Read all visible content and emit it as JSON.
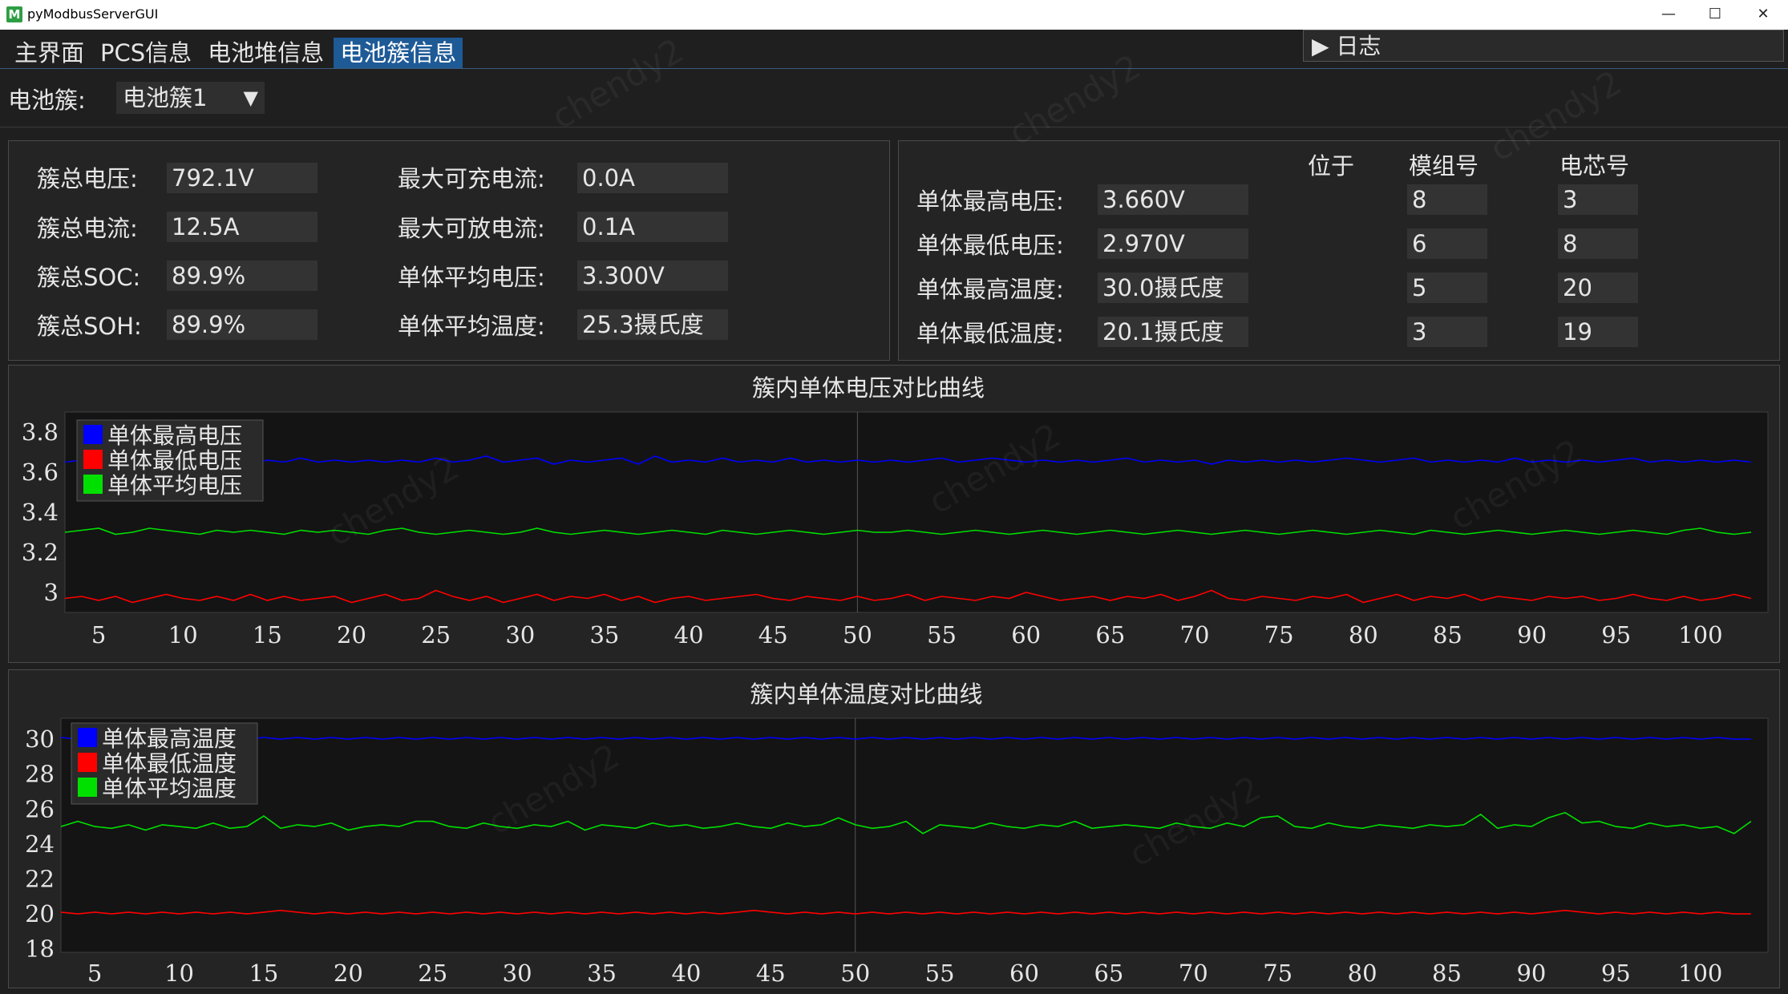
{
  "window": {
    "title": "pyModbusServerGUI",
    "logo": "M",
    "minimize": "—",
    "maximize": "☐",
    "close": "✕"
  },
  "tabs": [
    "主界面",
    "PCS信息",
    "电池堆信息",
    "电池簇信息"
  ],
  "active_tab": 3,
  "log_button": "▶ 日志",
  "cluster_selector": {
    "label": "电池簇:",
    "value": "电池簇1",
    "arrow": "▼"
  },
  "summary": {
    "left": [
      {
        "label": "簇总电压:",
        "value": "792.1V"
      },
      {
        "label": "簇总电流:",
        "value": "12.5A"
      },
      {
        "label": "簇总SOC:",
        "value": "89.9%"
      },
      {
        "label": "簇总SOH:",
        "value": "89.9%"
      }
    ],
    "middle": [
      {
        "label": "最大可充电流:",
        "value": "0.0A"
      },
      {
        "label": "最大可放电流:",
        "value": "0.1A"
      },
      {
        "label": "单体平均电压:",
        "value": "3.300V"
      },
      {
        "label": "单体平均温度:",
        "value": "25.3摄氏度"
      }
    ]
  },
  "extremes": {
    "headers": {
      "located": "位于",
      "module": "模组号",
      "cell": "电芯号"
    },
    "rows": [
      {
        "label": "单体最高电压:",
        "value": "3.660V",
        "module": "8",
        "cell": "3"
      },
      {
        "label": "单体最低电压:",
        "value": "2.970V",
        "module": "6",
        "cell": "8"
      },
      {
        "label": "单体最高温度:",
        "value": "30.0摄氏度",
        "module": "5",
        "cell": "20"
      },
      {
        "label": "单体最低温度:",
        "value": "20.1摄氏度",
        "module": "3",
        "cell": "19"
      }
    ]
  },
  "watermark": "chendy2",
  "colors": {
    "max": "#0000ff",
    "min": "#ff0000",
    "avg": "#00e000",
    "tab_active": "#1e5a96"
  },
  "chart_data": [
    {
      "type": "line",
      "title": "簇内单体电压对比曲线",
      "xlim": [
        3,
        104
      ],
      "ylim": [
        2.9,
        3.9
      ],
      "x_ticks": [
        5,
        10,
        15,
        20,
        25,
        30,
        35,
        40,
        45,
        50,
        55,
        60,
        65,
        70,
        75,
        80,
        85,
        90,
        95,
        100
      ],
      "y_ticks": [
        3,
        3.2,
        3.4,
        3.6,
        3.8
      ],
      "legend_position": "top-left",
      "grid": "x=50 only",
      "x_start": 3,
      "series": [
        {
          "name": "单体最高电压",
          "color": "#0000ff",
          "values": [
            3.65,
            3.66,
            3.65,
            3.67,
            3.65,
            3.66,
            3.65,
            3.66,
            3.67,
            3.65,
            3.66,
            3.64,
            3.66,
            3.65,
            3.67,
            3.65,
            3.66,
            3.65,
            3.66,
            3.65,
            3.66,
            3.65,
            3.67,
            3.65,
            3.66,
            3.68,
            3.65,
            3.66,
            3.67,
            3.64,
            3.66,
            3.65,
            3.66,
            3.67,
            3.64,
            3.68,
            3.65,
            3.66,
            3.65,
            3.67,
            3.65,
            3.66,
            3.65,
            3.67,
            3.65,
            3.66,
            3.65,
            3.66,
            3.65,
            3.66,
            3.65,
            3.66,
            3.67,
            3.65,
            3.66,
            3.67,
            3.66,
            3.65,
            3.66,
            3.65,
            3.66,
            3.65,
            3.66,
            3.67,
            3.65,
            3.66,
            3.65,
            3.66,
            3.64,
            3.66,
            3.65,
            3.66,
            3.65,
            3.66,
            3.65,
            3.66,
            3.67,
            3.66,
            3.65,
            3.66,
            3.67,
            3.65,
            3.66,
            3.65,
            3.66,
            3.65,
            3.67,
            3.65,
            3.66,
            3.65,
            3.66,
            3.65,
            3.66,
            3.67,
            3.65,
            3.66,
            3.65,
            3.66,
            3.65,
            3.66,
            3.65
          ]
        },
        {
          "name": "单体最低电压",
          "color": "#ff0000",
          "values": [
            2.97,
            2.98,
            2.96,
            2.98,
            2.95,
            2.97,
            2.99,
            2.97,
            2.96,
            2.98,
            2.96,
            2.99,
            2.96,
            2.98,
            2.96,
            2.97,
            2.98,
            2.95,
            2.97,
            2.99,
            2.96,
            2.97,
            3.01,
            2.98,
            2.96,
            2.98,
            2.95,
            2.97,
            2.99,
            2.96,
            2.98,
            2.97,
            2.99,
            2.96,
            2.98,
            2.95,
            2.97,
            2.98,
            2.96,
            2.97,
            2.98,
            2.99,
            2.97,
            2.96,
            2.98,
            2.97,
            2.96,
            2.98,
            2.96,
            2.97,
            2.99,
            2.96,
            2.98,
            2.97,
            2.96,
            2.98,
            2.97,
            3.0,
            2.98,
            2.96,
            2.97,
            2.98,
            2.96,
            2.98,
            2.97,
            2.99,
            2.96,
            2.98,
            3.01,
            2.97,
            2.96,
            2.98,
            2.97,
            2.96,
            2.98,
            2.97,
            2.99,
            2.95,
            2.97,
            2.99,
            2.96,
            2.98,
            2.97,
            2.99,
            2.96,
            2.98,
            2.97,
            2.96,
            2.98,
            2.97,
            2.98,
            2.96,
            2.97,
            2.99,
            2.97,
            2.96,
            2.98,
            2.96,
            2.97,
            2.99,
            2.97
          ]
        },
        {
          "name": "单体平均电压",
          "color": "#00e000",
          "values": [
            3.3,
            3.31,
            3.32,
            3.29,
            3.3,
            3.32,
            3.31,
            3.3,
            3.29,
            3.31,
            3.3,
            3.31,
            3.3,
            3.29,
            3.31,
            3.3,
            3.31,
            3.3,
            3.29,
            3.31,
            3.32,
            3.3,
            3.29,
            3.3,
            3.31,
            3.3,
            3.29,
            3.3,
            3.32,
            3.3,
            3.29,
            3.3,
            3.31,
            3.3,
            3.29,
            3.3,
            3.31,
            3.3,
            3.29,
            3.31,
            3.3,
            3.29,
            3.3,
            3.31,
            3.3,
            3.29,
            3.3,
            3.31,
            3.3,
            3.3,
            3.31,
            3.3,
            3.29,
            3.3,
            3.31,
            3.3,
            3.29,
            3.3,
            3.31,
            3.3,
            3.29,
            3.3,
            3.31,
            3.3,
            3.29,
            3.3,
            3.31,
            3.3,
            3.29,
            3.3,
            3.31,
            3.3,
            3.29,
            3.3,
            3.31,
            3.3,
            3.29,
            3.3,
            3.31,
            3.3,
            3.29,
            3.31,
            3.3,
            3.29,
            3.3,
            3.31,
            3.3,
            3.29,
            3.3,
            3.31,
            3.3,
            3.29,
            3.3,
            3.31,
            3.3,
            3.29,
            3.31,
            3.32,
            3.3,
            3.29,
            3.3
          ]
        }
      ]
    },
    {
      "type": "line",
      "title": "簇内单体温度对比曲线",
      "xlim": [
        3,
        104
      ],
      "ylim": [
        17.8,
        31.2
      ],
      "x_ticks": [
        5,
        10,
        15,
        20,
        25,
        30,
        35,
        40,
        45,
        50,
        55,
        60,
        65,
        70,
        75,
        80,
        85,
        90,
        95,
        100
      ],
      "y_ticks": [
        18,
        20,
        22,
        24,
        26,
        28,
        30
      ],
      "legend_position": "top-left",
      "grid": "x=50 only",
      "x_start": 3,
      "series": [
        {
          "name": "单体最高温度",
          "color": "#0000ff",
          "values": [
            30.1,
            30.0,
            30.1,
            30.0,
            30.2,
            30.0,
            30.1,
            30.0,
            30.1,
            30.0,
            30.1,
            30.0,
            30.1,
            30.0,
            30.1,
            30.0,
            30.1,
            30.0,
            30.1,
            30.0,
            30.1,
            30.0,
            30.1,
            30.0,
            30.1,
            30.0,
            30.1,
            30.0,
            30.1,
            30.0,
            30.1,
            30.0,
            30.1,
            30.0,
            30.1,
            30.0,
            30.1,
            30.0,
            30.1,
            30.0,
            30.1,
            30.0,
            30.1,
            30.0,
            30.1,
            30.0,
            30.1,
            30.0,
            30.1,
            30.0,
            30.1,
            30.0,
            30.1,
            30.0,
            30.1,
            30.0,
            30.1,
            30.0,
            30.1,
            30.0,
            30.1,
            30.0,
            30.1,
            30.0,
            30.1,
            30.0,
            30.1,
            30.0,
            30.1,
            30.0,
            30.1,
            30.0,
            30.1,
            30.0,
            30.1,
            30.0,
            30.1,
            30.0,
            30.1,
            30.0,
            30.1,
            30.0,
            30.1,
            30.0,
            30.1,
            30.0,
            30.1,
            30.0,
            30.1,
            30.0,
            30.1,
            30.0,
            30.1,
            30.0,
            30.1,
            30.0,
            30.1,
            30.0,
            30.1,
            30.0,
            30.0
          ]
        },
        {
          "name": "单体最低温度",
          "color": "#ff0000",
          "values": [
            20.1,
            20.0,
            20.1,
            20.0,
            20.1,
            20.0,
            20.1,
            20.0,
            20.1,
            20.0,
            20.1,
            20.0,
            20.1,
            20.2,
            20.1,
            20.0,
            20.1,
            20.0,
            20.1,
            20.0,
            20.1,
            20.0,
            20.1,
            20.0,
            20.1,
            20.0,
            20.1,
            20.0,
            20.1,
            20.0,
            20.1,
            20.0,
            20.1,
            20.0,
            20.1,
            20.0,
            20.1,
            20.0,
            20.1,
            20.0,
            20.1,
            20.2,
            20.1,
            20.0,
            20.1,
            20.0,
            20.1,
            20.0,
            20.1,
            20.0,
            20.1,
            20.0,
            20.1,
            20.0,
            20.1,
            20.0,
            20.1,
            20.0,
            20.1,
            20.0,
            20.1,
            20.0,
            20.1,
            20.0,
            20.1,
            20.0,
            20.1,
            20.0,
            20.1,
            20.0,
            20.1,
            20.0,
            20.1,
            20.0,
            20.1,
            20.0,
            20.1,
            20.0,
            20.1,
            20.0,
            20.1,
            20.0,
            20.1,
            20.0,
            20.1,
            20.0,
            20.1,
            20.0,
            20.1,
            20.2,
            20.1,
            20.0,
            20.1,
            20.0,
            20.1,
            20.0,
            20.1,
            20.0,
            20.1,
            20.0,
            20.0
          ]
        },
        {
          "name": "单体平均温度",
          "color": "#00e000",
          "values": [
            25.0,
            25.3,
            25.0,
            24.9,
            25.1,
            24.8,
            25.1,
            25.0,
            24.9,
            25.2,
            24.9,
            25.0,
            25.6,
            24.9,
            25.1,
            25.0,
            25.2,
            24.8,
            25.0,
            25.1,
            25.0,
            25.3,
            25.3,
            25.0,
            24.9,
            25.2,
            25.0,
            24.9,
            25.1,
            25.0,
            25.3,
            24.8,
            25.1,
            25.0,
            24.9,
            25.2,
            25.0,
            25.1,
            24.9,
            25.0,
            25.2,
            25.0,
            24.9,
            25.2,
            25.0,
            25.1,
            25.5,
            25.1,
            24.9,
            25.0,
            25.3,
            24.6,
            25.1,
            25.0,
            24.9,
            25.2,
            25.0,
            24.9,
            25.1,
            25.0,
            25.3,
            24.9,
            25.0,
            25.1,
            25.0,
            24.9,
            25.2,
            25.0,
            24.9,
            25.2,
            25.0,
            25.5,
            25.6,
            25.0,
            24.9,
            25.2,
            25.0,
            24.9,
            25.1,
            25.0,
            24.9,
            25.1,
            25.0,
            25.1,
            25.7,
            24.9,
            25.1,
            25.0,
            25.5,
            25.8,
            25.2,
            25.3,
            25.0,
            24.9,
            25.2,
            25.0,
            25.1,
            24.9,
            25.0,
            24.6,
            25.3
          ]
        }
      ]
    }
  ]
}
